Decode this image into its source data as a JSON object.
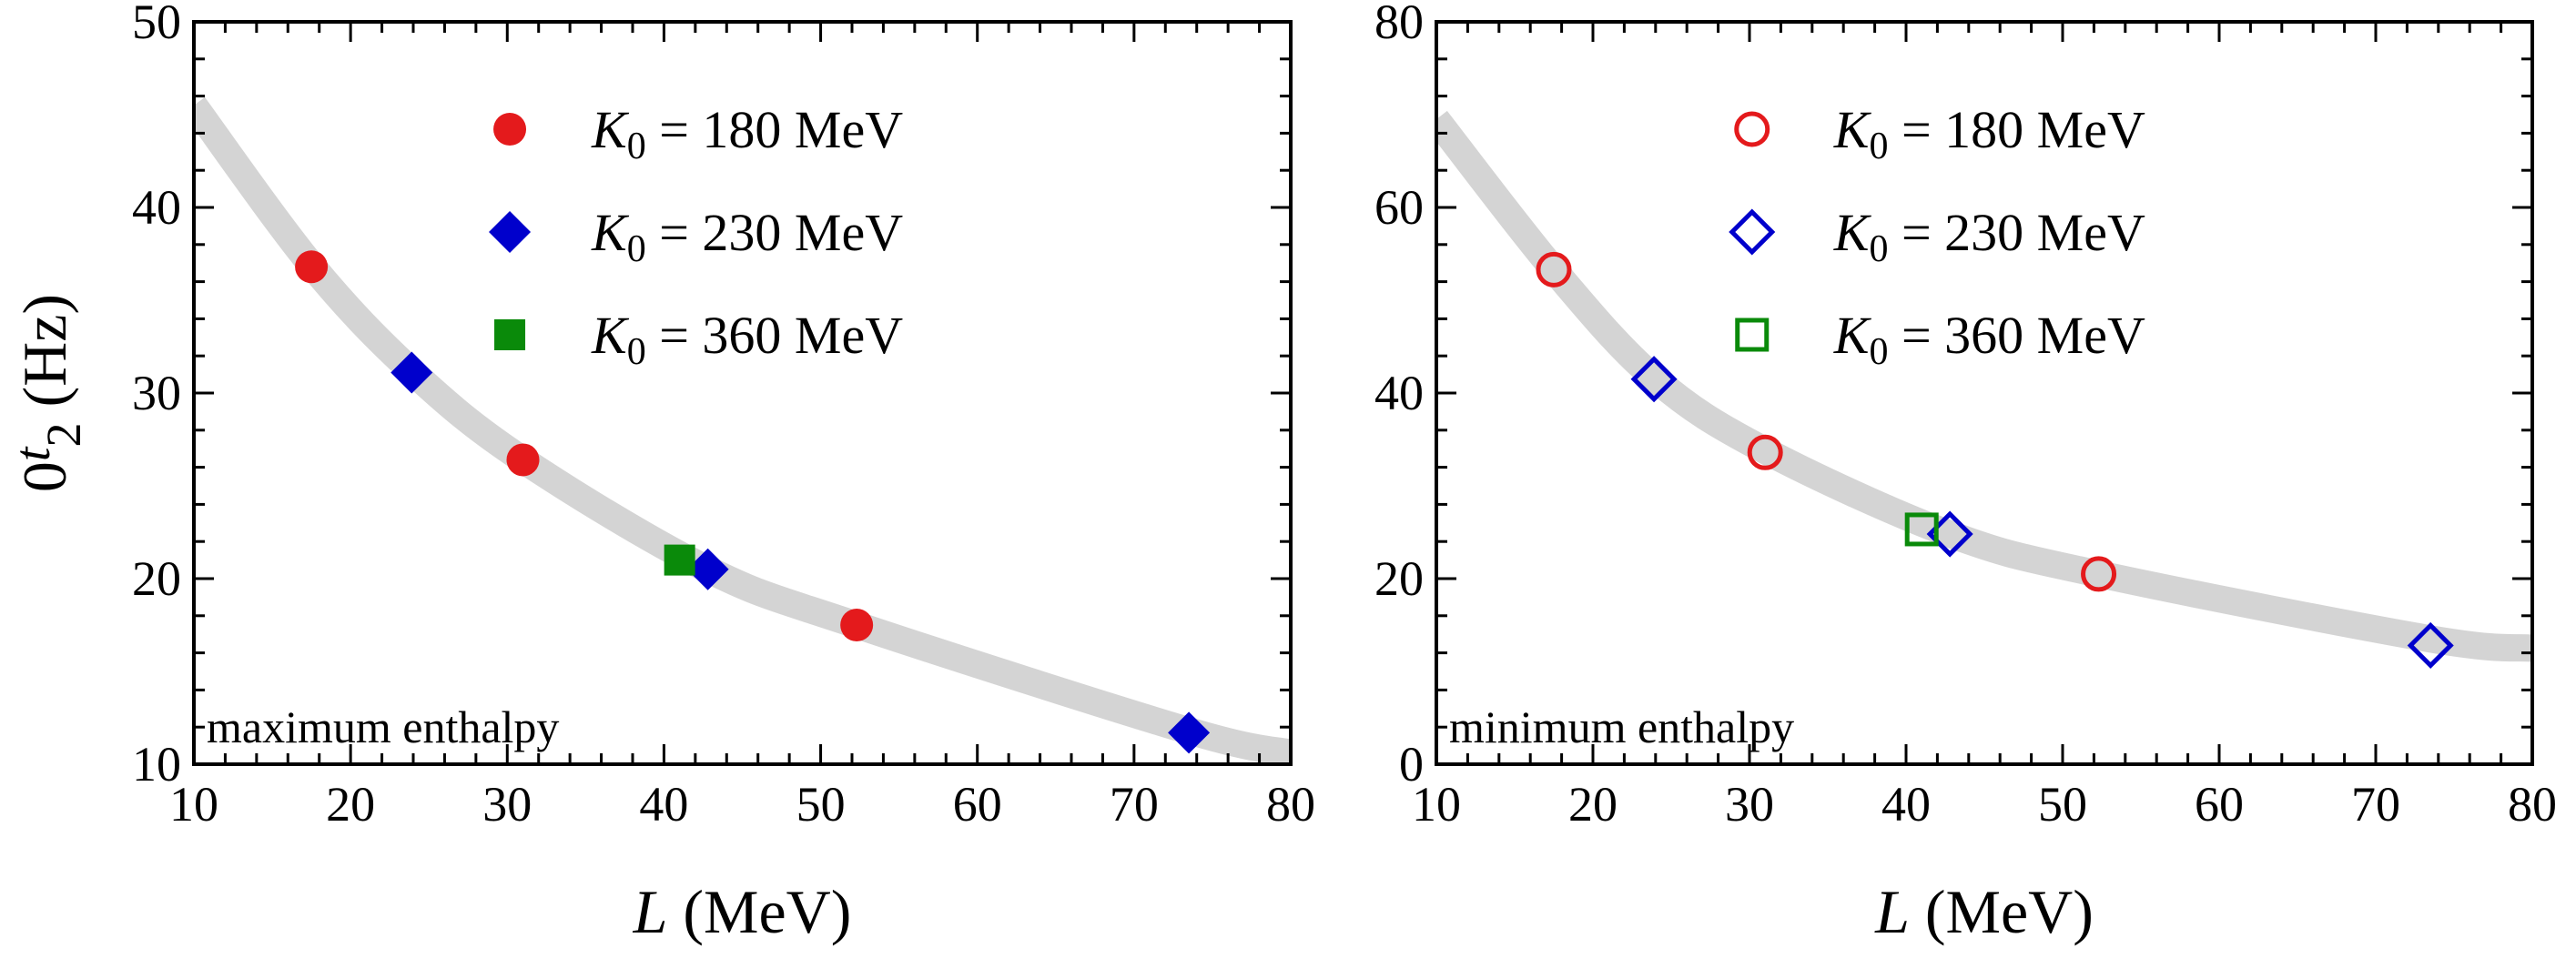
{
  "figure": {
    "ylabel_prefix": "0",
    "ylabel_var": "t",
    "ylabel_sub": "2",
    "ylabel_unit": " (Hz)",
    "xlabel_var": "L",
    "xlabel_unit": " (MeV)"
  },
  "colors": {
    "red": "#e41a1c",
    "blue": "#0000cc",
    "green": "#0a8a0a",
    "band": "#d4d4d4"
  },
  "chart_data": [
    {
      "type": "scatter",
      "panel": "left",
      "annotation": "maximum enthalpy",
      "marker_fill": "filled",
      "xlim": [
        10,
        80
      ],
      "ylim": [
        10,
        50
      ],
      "xticks": [
        10,
        20,
        30,
        40,
        50,
        60,
        70,
        80
      ],
      "yticks": [
        10,
        20,
        30,
        40,
        50
      ],
      "xlabel": "L (MeV)",
      "ylabel": "0t2 (Hz)",
      "legend_position": "top-right",
      "fit_curve": {
        "x": [
          10,
          17.5,
          24,
          31,
          42.8,
          52.3,
          73.5,
          80
        ],
        "y": [
          45.5,
          36.9,
          31.1,
          26.4,
          20.5,
          17.5,
          11.8,
          10.6
        ]
      },
      "series": [
        {
          "name": "K0 = 180 MeV",
          "label_var": "K",
          "label_sub": "0",
          "label_rest": " = 180 MeV",
          "marker": "circle",
          "color": "#e41a1c",
          "points": [
            [
              17.5,
              36.8
            ],
            [
              31.0,
              26.4
            ],
            [
              52.3,
              17.5
            ]
          ]
        },
        {
          "name": "K0 = 230 MeV",
          "label_var": "K",
          "label_sub": "0",
          "label_rest": " = 230 MeV",
          "marker": "diamond",
          "color": "#0000cc",
          "points": [
            [
              23.9,
              31.1
            ],
            [
              42.8,
              20.5
            ],
            [
              73.5,
              11.7
            ]
          ]
        },
        {
          "name": "K0 = 360 MeV",
          "label_var": "K",
          "label_sub": "0",
          "label_rest": " = 360 MeV",
          "marker": "square",
          "color": "#0a8a0a",
          "points": [
            [
              41.0,
              21.0
            ]
          ]
        }
      ]
    },
    {
      "type": "scatter",
      "panel": "right",
      "annotation": "minimum enthalpy",
      "marker_fill": "open",
      "xlim": [
        10,
        80
      ],
      "ylim": [
        0,
        80
      ],
      "xticks": [
        10,
        20,
        30,
        40,
        50,
        60,
        70,
        80
      ],
      "yticks": [
        0,
        20,
        40,
        60,
        80
      ],
      "xlabel": "L (MeV)",
      "ylabel": "",
      "legend_position": "top-right",
      "fit_curve": {
        "x": [
          10,
          17.5,
          24,
          31,
          42.8,
          52.3,
          73.5,
          80
        ],
        "y": [
          69.5,
          53.3,
          41.5,
          33.8,
          24.8,
          20.5,
          13.5,
          12.5
        ]
      },
      "series": [
        {
          "name": "K0 = 180 MeV",
          "label_var": "K",
          "label_sub": "0",
          "label_rest": " = 180 MeV",
          "marker": "circle",
          "color": "#e41a1c",
          "points": [
            [
              17.5,
              53.3
            ],
            [
              31.0,
              33.6
            ],
            [
              52.3,
              20.5
            ]
          ]
        },
        {
          "name": "K0 = 230 MeV",
          "label_var": "K",
          "label_sub": "0",
          "label_rest": " = 230 MeV",
          "marker": "diamond",
          "color": "#0000cc",
          "points": [
            [
              23.9,
              41.5
            ],
            [
              42.8,
              24.8
            ],
            [
              73.5,
              12.8
            ]
          ]
        },
        {
          "name": "K0 = 360 MeV",
          "label_var": "K",
          "label_sub": "0",
          "label_rest": " = 360 MeV",
          "marker": "square",
          "color": "#0a8a0a",
          "points": [
            [
              41.0,
              25.3
            ]
          ]
        }
      ]
    }
  ]
}
